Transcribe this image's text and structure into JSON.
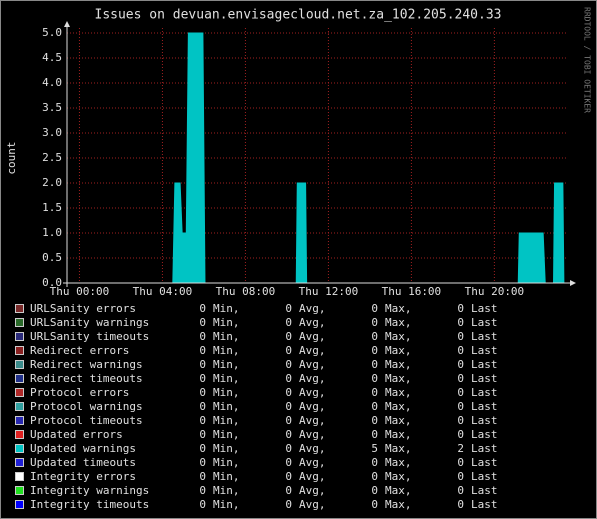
{
  "chart_data": {
    "type": "area",
    "title": "Issues on devuan.envisagecloud.net.za_102.205.240.33",
    "y_label": "count",
    "watermark": "RRDTOOL / TOBI OETIKER",
    "x": [
      -0.6,
      4.5,
      4.6,
      4.85,
      4.95,
      5.15,
      5.25,
      5.95,
      6.05,
      10.45,
      10.5,
      10.9,
      10.95,
      21.15,
      21.2,
      22.35,
      22.45,
      22.85,
      22.9,
      23.3,
      23.35
    ],
    "xlim": [
      -0.6,
      23.5
    ],
    "xticks": [
      {
        "value": 0,
        "label": "Thu 00:00"
      },
      {
        "value": 4,
        "label": "Thu 04:00"
      },
      {
        "value": 8,
        "label": "Thu 08:00"
      },
      {
        "value": 12,
        "label": "Thu 12:00"
      },
      {
        "value": 16,
        "label": "Thu 16:00"
      },
      {
        "value": 20,
        "label": "Thu 20:00"
      }
    ],
    "ylim": [
      0,
      5.1
    ],
    "yticks": [
      {
        "value": 0,
        "label": "0.0"
      },
      {
        "value": 0.5,
        "label": "0.5"
      },
      {
        "value": 1,
        "label": "1.0"
      },
      {
        "value": 1.5,
        "label": "1.5"
      },
      {
        "value": 2,
        "label": "2.0"
      },
      {
        "value": 2.5,
        "label": "2.5"
      },
      {
        "value": 3,
        "label": "3.0"
      },
      {
        "value": 3.5,
        "label": "3.5"
      },
      {
        "value": 4,
        "label": "4.0"
      },
      {
        "value": 4.5,
        "label": "4.5"
      },
      {
        "value": 5,
        "label": "5.0"
      }
    ],
    "grid": true,
    "legend_labels": {
      "min": "Min,",
      "avg": "Avg,",
      "max": "Max,",
      "last": "Last"
    },
    "series": [
      {
        "name": "URLSanity errors",
        "color": "#7a2a2a",
        "min": 0,
        "avg": 0,
        "max": 0,
        "last": 0
      },
      {
        "name": "URLSanity warnings",
        "color": "#2a6a2a",
        "min": 0,
        "avg": 0,
        "max": 0,
        "last": 0
      },
      {
        "name": "URLSanity timeouts",
        "color": "#2a2a7a",
        "min": 0,
        "avg": 0,
        "max": 0,
        "last": 0
      },
      {
        "name": "Redirect errors",
        "color": "#8a2020",
        "min": 0,
        "avg": 0,
        "max": 0,
        "last": 0
      },
      {
        "name": "Redirect warnings",
        "color": "#3a8a8a",
        "min": 0,
        "avg": 0,
        "max": 0,
        "last": 0
      },
      {
        "name": "Redirect timeouts",
        "color": "#20308a",
        "min": 0,
        "avg": 0,
        "max": 0,
        "last": 0
      },
      {
        "name": "Protocol errors",
        "color": "#b02828",
        "min": 0,
        "avg": 0,
        "max": 0,
        "last": 0
      },
      {
        "name": "Protocol warnings",
        "color": "#30a0a0",
        "min": 0,
        "avg": 0,
        "max": 0,
        "last": 0
      },
      {
        "name": "Protocol timeouts",
        "color": "#2828b0",
        "min": 0,
        "avg": 0,
        "max": 0,
        "last": 0
      },
      {
        "name": "Updated errors",
        "color": "#e02020",
        "min": 0,
        "avg": 0,
        "max": 0,
        "last": 0
      },
      {
        "name": "Updated warnings",
        "color": "#00c4c4",
        "min": 0,
        "avg": 0,
        "max": 5,
        "last": 2,
        "values": [
          0,
          0,
          2,
          2,
          1,
          1,
          5,
          5,
          0,
          0,
          2,
          2,
          0,
          0,
          1,
          1,
          0,
          0,
          2,
          2,
          0
        ]
      },
      {
        "name": "Updated timeouts",
        "color": "#2020d8",
        "min": 0,
        "avg": 0,
        "max": 0,
        "last": 0
      },
      {
        "name": "Integrity errors",
        "color": "#ffffff",
        "min": 0,
        "avg": 0,
        "max": 0,
        "last": 0
      },
      {
        "name": "Integrity warnings",
        "color": "#20e020",
        "min": 0,
        "avg": 0,
        "max": 0,
        "last": 0
      },
      {
        "name": "Integrity timeouts",
        "color": "#0000ff",
        "min": 0,
        "avg": 0,
        "max": 0,
        "last": 0
      }
    ]
  }
}
